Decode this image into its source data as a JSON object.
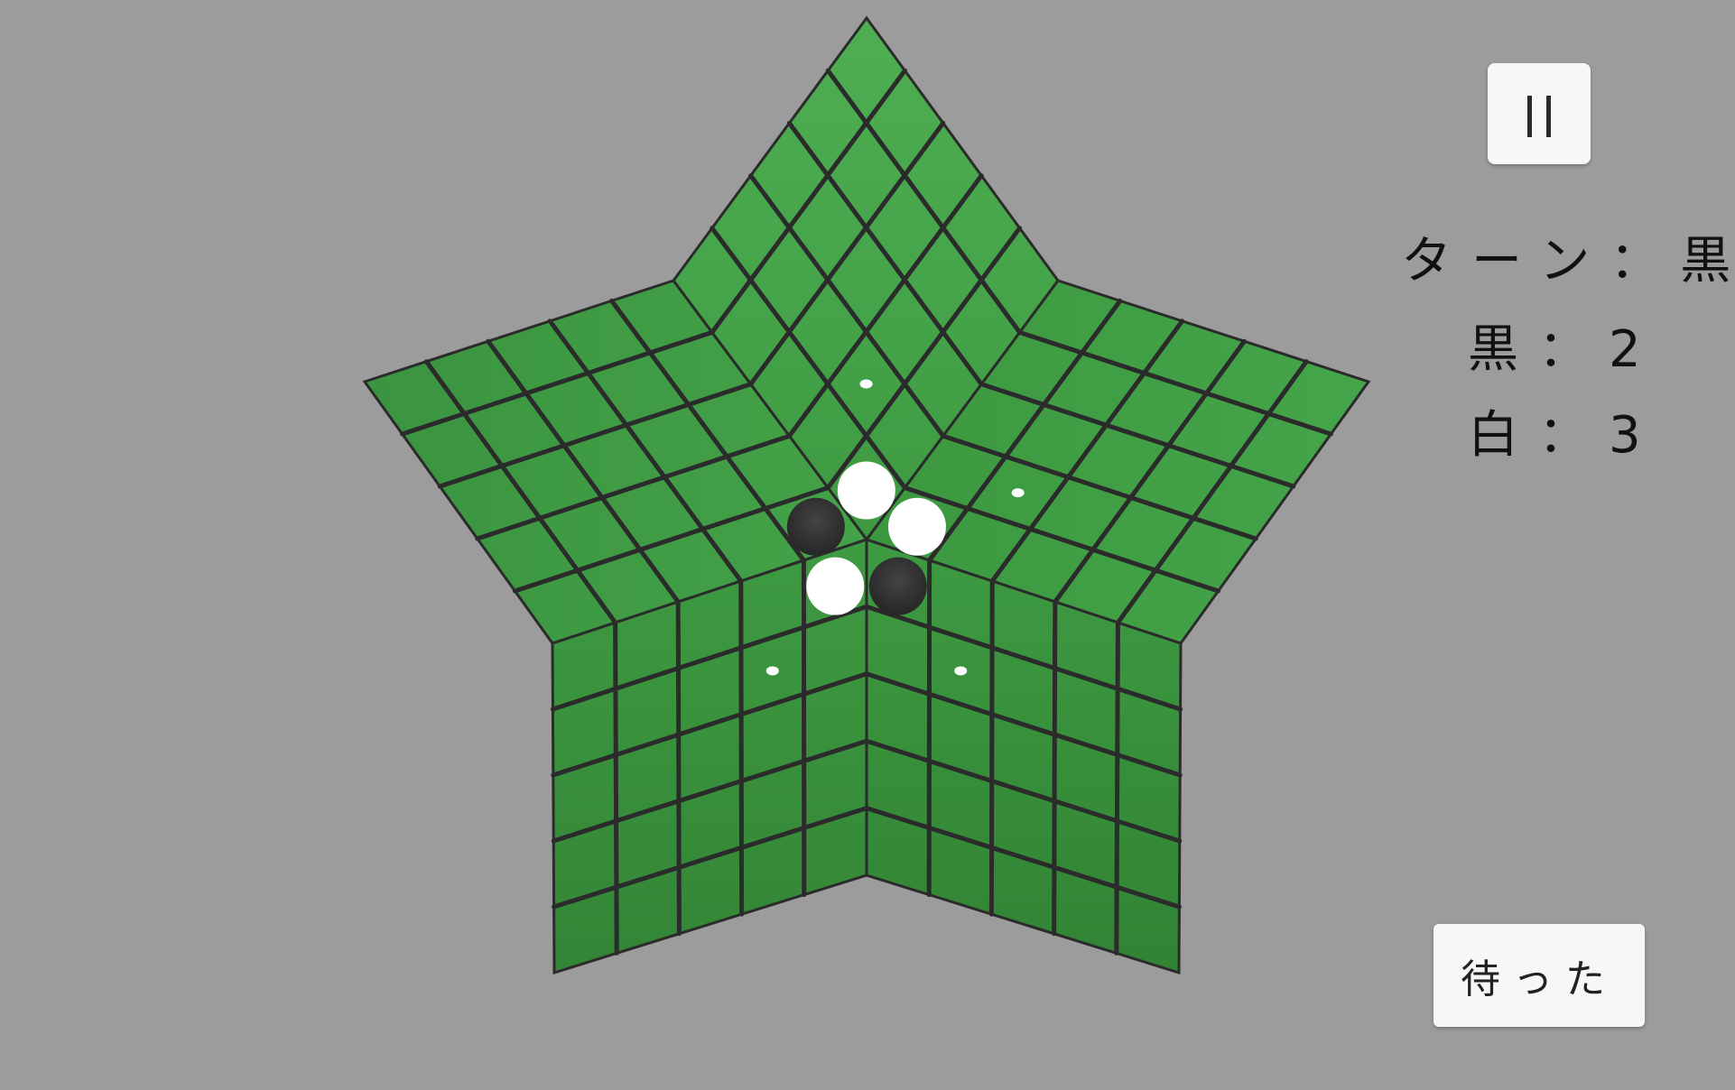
{
  "pause_button": {
    "icon": "pause-icon"
  },
  "status": {
    "turn_text": "ターン：黒",
    "black_score_text": "黒：2",
    "white_score_text": "白：3"
  },
  "undo_button": {
    "label": "待った"
  },
  "colors": {
    "background": "#9c9c9c",
    "board_green": "#3f9a43",
    "grid_line": "#2b2b2b",
    "black_piece": "#333333",
    "white_piece": "#ffffff"
  },
  "board": {
    "shape": "five-pointed star",
    "sectors": 5,
    "cells_per_sector_side": 5,
    "pieces": [
      {
        "sector": 0,
        "u": 0,
        "v": 0,
        "color": "white"
      },
      {
        "sector": 1,
        "u": 0,
        "v": 0,
        "color": "black"
      },
      {
        "sector": 2,
        "u": 0,
        "v": 0,
        "color": "white"
      },
      {
        "sector": 3,
        "u": 0,
        "v": 0,
        "color": "white"
      },
      {
        "sector": 4,
        "u": 0,
        "v": 0,
        "color": "black"
      }
    ],
    "move_hints": [
      {
        "sector": 0,
        "u": 1,
        "v": 1
      },
      {
        "sector": 2,
        "u": 1,
        "v": 1
      },
      {
        "sector": 3,
        "u": 1,
        "v": 1
      },
      {
        "sector": 4,
        "u": 1,
        "v": 1
      }
    ]
  }
}
